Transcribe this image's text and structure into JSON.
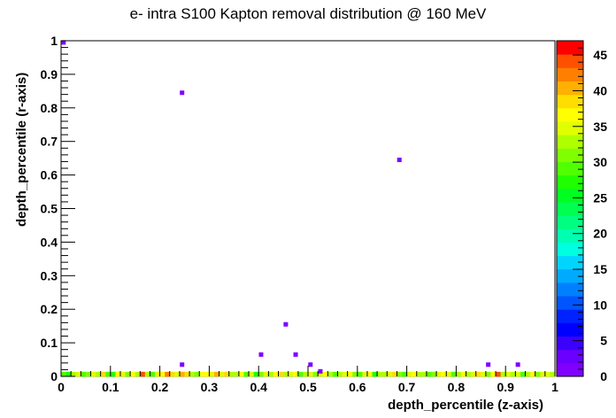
{
  "chart_data": {
    "type": "heatmap",
    "title": "e- intra S100 Kapton removal distribution @ 160 MeV",
    "xlabel": "depth_percentile (z-axis)",
    "ylabel": "depth_percentile (r-axis)",
    "xlim": [
      0,
      1
    ],
    "ylim": [
      0,
      1
    ],
    "x_ticks": [
      "0",
      "0.1",
      "0.2",
      "0.3",
      "0.4",
      "0.5",
      "0.6",
      "0.7",
      "0.8",
      "0.9",
      "1"
    ],
    "y_ticks": [
      "0",
      "0.1",
      "0.2",
      "0.3",
      "0.4",
      "0.5",
      "0.6",
      "0.7",
      "0.8",
      "0.9",
      "1"
    ],
    "z_ticks": [
      "0",
      "5",
      "10",
      "15",
      "20",
      "25",
      "30",
      "35",
      "40",
      "45"
    ],
    "zlim": [
      0,
      47
    ],
    "palette": [
      "#7f00ff",
      "#6a00ff",
      "#3c00ff",
      "#0000ff",
      "#0022ff",
      "#0055ff",
      "#0080ff",
      "#00aaff",
      "#00d5ff",
      "#00ffe0",
      "#00ffb0",
      "#00ff80",
      "#00ff50",
      "#00ff20",
      "#20ff00",
      "#50ff00",
      "#80ff00",
      "#b0ff00",
      "#e0ff00",
      "#ffff00",
      "#ffdd00",
      "#ffb000",
      "#ff8000",
      "#ff5000",
      "#ff0000"
    ],
    "points": [
      {
        "x": 0.005,
        "y": 0.995,
        "z": 1
      },
      {
        "x": 0.245,
        "y": 0.845,
        "z": 1
      },
      {
        "x": 0.685,
        "y": 0.645,
        "z": 1
      },
      {
        "x": 0.455,
        "y": 0.155,
        "z": 1
      },
      {
        "x": 0.405,
        "y": 0.065,
        "z": 1
      },
      {
        "x": 0.475,
        "y": 0.065,
        "z": 1
      },
      {
        "x": 0.245,
        "y": 0.035,
        "z": 1
      },
      {
        "x": 0.505,
        "y": 0.035,
        "z": 1
      },
      {
        "x": 0.865,
        "y": 0.035,
        "z": 1
      },
      {
        "x": 0.925,
        "y": 0.035,
        "z": 1
      },
      {
        "x": 0.525,
        "y": 0.015,
        "z": 1
      }
    ],
    "bottom_row_y": 0.005,
    "bottom_row_values": [
      30,
      27,
      32,
      34,
      29,
      31,
      35,
      33,
      38,
      30,
      28,
      36,
      34,
      31,
      37,
      33,
      45,
      32,
      30,
      35,
      36,
      42,
      38,
      34,
      40,
      39,
      33,
      31,
      36,
      37,
      35,
      41,
      34,
      38,
      32,
      33,
      36,
      30,
      34,
      28,
      31,
      35,
      32,
      37,
      39,
      33,
      34,
      36,
      30,
      32,
      35,
      31,
      34,
      36,
      33,
      29,
      32,
      35,
      37,
      31,
      30,
      34,
      36,
      28,
      32,
      33,
      35,
      38,
      31,
      30,
      34,
      36,
      32,
      33,
      29,
      31,
      35,
      37,
      34,
      30,
      32,
      36,
      33,
      35,
      38,
      34,
      31,
      36,
      44,
      33,
      35,
      32,
      34,
      30,
      33,
      36,
      31,
      35,
      34,
      32
    ]
  }
}
